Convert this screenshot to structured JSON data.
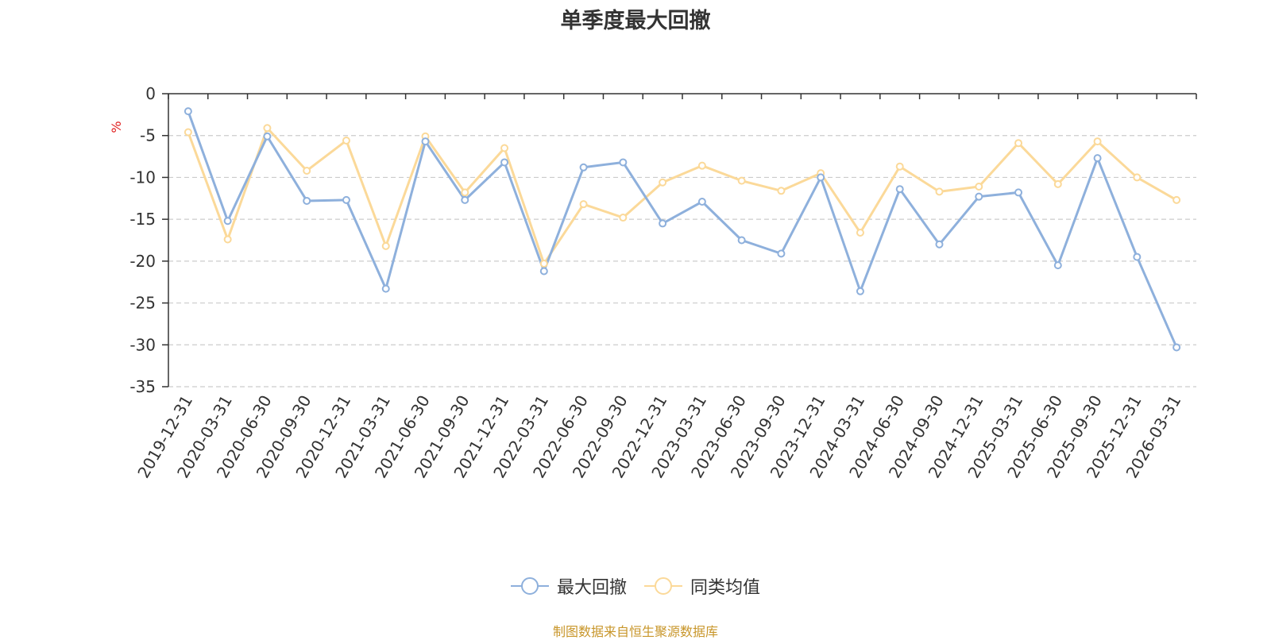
{
  "chart_data": {
    "type": "line",
    "title": "单季度最大回撤",
    "ylabel": "%",
    "ylim": [
      -35,
      0
    ],
    "yticks": [
      0,
      -5,
      -10,
      -15,
      -20,
      -25,
      -30,
      -35
    ],
    "grid": true,
    "legend_position": "bottom",
    "categories": [
      "2019-12-31",
      "2020-03-31",
      "2020-06-30",
      "2020-09-30",
      "2020-12-31",
      "2021-03-31",
      "2021-06-30",
      "2021-09-30",
      "2021-12-31",
      "2022-03-31",
      "2022-06-30",
      "2022-09-30",
      "2022-12-31",
      "2023-03-31",
      "2023-06-30",
      "2023-09-30",
      "2023-12-31",
      "2024-03-31",
      "2024-06-30",
      "2024-09-30",
      "2024-12-31",
      "2025-03-31",
      "2025-06-30",
      "2025-09-30",
      "2025-12-31",
      "2026-03-31"
    ],
    "series": [
      {
        "name": "最大回撤",
        "color": "#8eb0dc",
        "values": [
          -2.1,
          -15.2,
          -5.1,
          -12.8,
          -12.7,
          -23.3,
          -5.7,
          -12.7,
          -8.2,
          -21.2,
          -8.8,
          -8.2,
          -15.5,
          -12.9,
          -17.5,
          -19.1,
          -10.0,
          -23.6,
          -11.4,
          -18.0,
          -12.3,
          -11.8,
          -20.5,
          -7.7,
          -19.5,
          -30.3
        ]
      },
      {
        "name": "同类均值",
        "color": "#fbd999",
        "values": [
          -4.6,
          -17.4,
          -4.1,
          -9.2,
          -5.6,
          -18.2,
          -5.1,
          -11.8,
          -6.5,
          -20.3,
          -13.2,
          -14.8,
          -10.6,
          -8.6,
          -10.4,
          -11.6,
          -9.5,
          -16.6,
          -8.7,
          -11.7,
          -11.1,
          -5.9,
          -10.8,
          -5.7,
          -10.0,
          -12.7
        ]
      }
    ]
  },
  "footer": {
    "source": "制图数据来自恒生聚源数据库"
  }
}
